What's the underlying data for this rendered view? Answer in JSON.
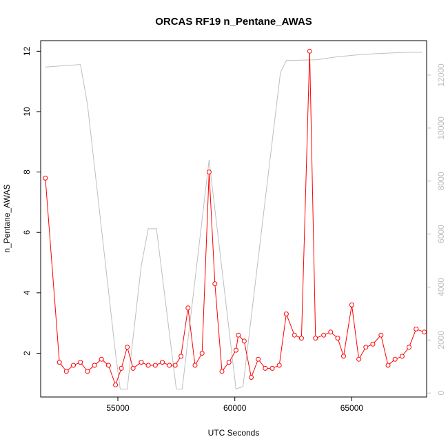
{
  "chart_data": {
    "type": "line",
    "title": "ORCAS RF19 n_Pentane_AWAS",
    "xlabel": "UTC Seconds",
    "ylabel": "n_Pentane_AWAS",
    "xlim": [
      51700,
      68200
    ],
    "ylim": [
      0.55,
      12.35
    ],
    "y2lim": [
      -150,
      13300
    ],
    "x_ticks": [
      55000,
      60000,
      65000
    ],
    "x_tick_labels": [
      "55000",
      "60000",
      "65000"
    ],
    "y_ticks": [
      2,
      4,
      6,
      8,
      10,
      12
    ],
    "y_tick_labels": [
      "2",
      "4",
      "6",
      "8",
      "10",
      "12"
    ],
    "y2_ticks": [
      0,
      2000,
      4000,
      6000,
      8000,
      10000,
      12000
    ],
    "y2_tick_labels": [
      "0",
      "2000",
      "4000",
      "6000",
      "8000",
      "10000",
      "12000"
    ],
    "colors": {
      "primary": "#ff0000",
      "secondary": "#bebebe",
      "axis": "#000000"
    },
    "series": [
      {
        "axis": "left",
        "style": "line+points",
        "x": [
          51900,
          52500,
          52800,
          53100,
          53400,
          53700,
          54000,
          54300,
          54600,
          54900,
          55150,
          55400,
          55650,
          56000,
          56300,
          56600,
          56900,
          57200,
          57450,
          57700,
          58000,
          58300,
          58600,
          58900,
          59150,
          59450,
          59750,
          60050,
          60150,
          60400,
          60700,
          61000,
          61300,
          61600,
          61900,
          62200,
          62550,
          62850,
          63200,
          63450,
          63800,
          64100,
          64400,
          64650,
          65000,
          65300,
          65600,
          65900,
          66250,
          66550,
          66850,
          67150,
          67450,
          67750,
          68100
        ],
        "y": [
          7.8,
          1.7,
          1.4,
          1.6,
          1.7,
          1.4,
          1.6,
          1.8,
          1.6,
          0.95,
          1.5,
          2.2,
          1.5,
          1.7,
          1.6,
          1.6,
          1.7,
          1.6,
          1.6,
          1.9,
          3.5,
          1.6,
          2.0,
          8.0,
          4.3,
          1.4,
          1.7,
          2.1,
          2.6,
          2.4,
          1.2,
          1.8,
          1.5,
          1.5,
          1.6,
          3.3,
          2.6,
          2.5,
          12.0,
          2.5,
          2.6,
          2.7,
          2.5,
          1.9,
          3.6,
          1.8,
          2.2,
          2.3,
          2.6,
          1.6,
          1.8,
          1.9,
          2.2,
          2.8,
          2.7
        ]
      },
      {
        "axis": "right",
        "style": "line",
        "x": [
          51900,
          52600,
          53400,
          53700,
          54900,
          55100,
          55400,
          56000,
          56300,
          56650,
          57500,
          57750,
          58900,
          60050,
          60350,
          61300,
          61950,
          62200,
          63500,
          64300,
          65400,
          66500,
          67400,
          68000
        ],
        "y": [
          12300,
          12350,
          12400,
          10900,
          1500,
          150,
          150,
          4800,
          6200,
          6200,
          150,
          150,
          8800,
          150,
          250,
          7300,
          12100,
          12550,
          12580,
          12680,
          12780,
          12830,
          12860,
          12860
        ]
      }
    ]
  }
}
